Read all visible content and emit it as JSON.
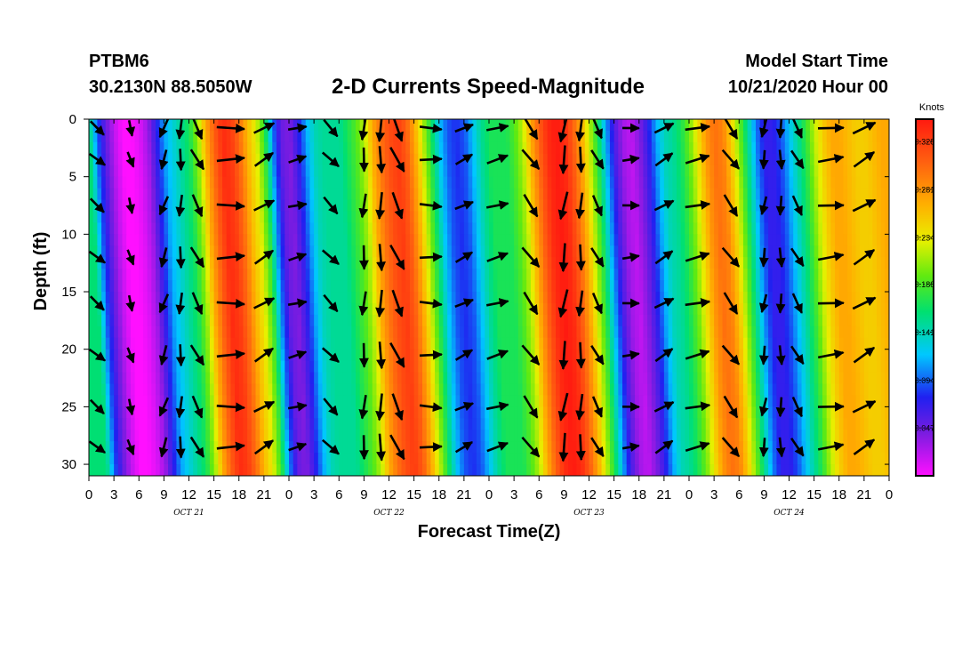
{
  "station": "PTBM6",
  "location": "30.2130N 88.5050W",
  "title": "2-D Currents Speed-Magnitude",
  "model_start_label": "Model Start Time",
  "model_start_value": "10/21/2020 Hour 00",
  "chart_data": {
    "type": "heatmap",
    "title": "2-D Currents Speed-Magnitude",
    "xlabel": "Forecast Time(Z)",
    "ylabel": "Depth (ft)",
    "xlim_hours": [
      0,
      96
    ],
    "ylim": [
      0,
      31
    ],
    "x_tick_labels": [
      "0",
      "3",
      "6",
      "9",
      "12",
      "15",
      "18",
      "21",
      "0",
      "3",
      "6",
      "9",
      "12",
      "15",
      "18",
      "21",
      "0",
      "3",
      "6",
      "9",
      "12",
      "15",
      "18",
      "21",
      "0",
      "3",
      "6",
      "9",
      "12",
      "15",
      "18",
      "21",
      "0"
    ],
    "day_labels": [
      "OCT 21",
      "OCT 22",
      "OCT 23",
      "OCT 24"
    ],
    "y_ticks": [
      0,
      5,
      10,
      15,
      20,
      25,
      30
    ],
    "colorbar_units": "Knots",
    "colorbar_ticks": [
      "0.328",
      "0.281",
      "0.234",
      "0.188",
      "0.141",
      "0.094",
      "0.047"
    ],
    "colorbar_range": [
      0.0,
      0.35
    ],
    "speed_profile": [
      [
        0,
        0.16
      ],
      [
        1,
        0.09
      ],
      [
        2,
        0.05
      ],
      [
        3,
        0.02
      ],
      [
        4,
        0.0
      ],
      [
        5,
        0.0
      ],
      [
        6,
        0.01
      ],
      [
        7,
        0.03
      ],
      [
        8,
        0.07
      ],
      [
        9,
        0.11
      ],
      [
        10,
        0.13
      ],
      [
        11,
        0.15
      ],
      [
        12,
        0.17
      ],
      [
        13,
        0.21
      ],
      [
        14,
        0.27
      ],
      [
        15,
        0.31
      ],
      [
        16,
        0.34
      ],
      [
        17,
        0.33
      ],
      [
        18,
        0.3
      ],
      [
        19,
        0.26
      ],
      [
        20,
        0.23
      ],
      [
        21,
        0.18
      ],
      [
        22,
        0.1
      ],
      [
        23,
        0.05
      ],
      [
        24,
        0.04
      ],
      [
        25,
        0.07
      ],
      [
        26,
        0.11
      ],
      [
        27,
        0.14
      ],
      [
        28,
        0.15
      ],
      [
        29,
        0.15
      ],
      [
        30,
        0.15
      ],
      [
        31,
        0.17
      ],
      [
        32,
        0.19
      ],
      [
        33,
        0.22
      ],
      [
        34,
        0.27
      ],
      [
        35,
        0.3
      ],
      [
        36,
        0.32
      ],
      [
        37,
        0.33
      ],
      [
        38,
        0.31
      ],
      [
        39,
        0.27
      ],
      [
        40,
        0.22
      ],
      [
        41,
        0.17
      ],
      [
        42,
        0.12
      ],
      [
        43,
        0.09
      ],
      [
        44,
        0.08
      ],
      [
        45,
        0.09
      ],
      [
        46,
        0.12
      ],
      [
        47,
        0.15
      ],
      [
        48,
        0.17
      ],
      [
        49,
        0.17
      ],
      [
        50,
        0.17
      ],
      [
        51,
        0.19
      ],
      [
        52,
        0.22
      ],
      [
        53,
        0.27
      ],
      [
        54,
        0.31
      ],
      [
        55,
        0.34
      ],
      [
        56,
        0.35
      ],
      [
        57,
        0.34
      ],
      [
        58,
        0.31
      ],
      [
        59,
        0.27
      ],
      [
        60,
        0.22
      ],
      [
        61,
        0.17
      ],
      [
        62,
        0.11
      ],
      [
        63,
        0.06
      ],
      [
        64,
        0.03
      ],
      [
        65,
        0.02
      ],
      [
        66,
        0.04
      ],
      [
        67,
        0.07
      ],
      [
        68,
        0.11
      ],
      [
        69,
        0.14
      ],
      [
        70,
        0.15
      ],
      [
        71,
        0.17
      ],
      [
        72,
        0.2
      ],
      [
        73,
        0.24
      ],
      [
        74,
        0.28
      ],
      [
        75,
        0.3
      ],
      [
        76,
        0.29
      ],
      [
        77,
        0.25
      ],
      [
        78,
        0.2
      ],
      [
        79,
        0.15
      ],
      [
        80,
        0.1
      ],
      [
        81,
        0.07
      ],
      [
        82,
        0.07
      ],
      [
        83,
        0.09
      ],
      [
        84,
        0.12
      ],
      [
        85,
        0.15
      ],
      [
        86,
        0.18
      ],
      [
        87,
        0.22
      ],
      [
        88,
        0.25
      ],
      [
        89,
        0.27
      ],
      [
        90,
        0.27
      ],
      [
        91,
        0.26
      ],
      [
        92,
        0.25
      ],
      [
        93,
        0.25
      ],
      [
        94,
        0.26
      ],
      [
        95,
        0.27
      ],
      [
        96,
        0.27
      ]
    ],
    "vector_columns_hours": [
      1,
      5,
      9,
      11,
      13,
      17,
      21,
      25,
      29,
      33,
      35,
      37,
      41,
      45,
      49,
      53,
      57,
      59,
      61,
      65,
      69,
      73,
      77,
      81,
      83,
      85,
      89,
      93
    ],
    "vector_depths_ft": [
      0,
      3.5,
      7.5,
      12,
      16,
      20.5,
      25,
      28.5
    ],
    "vector_direction_deg_by_hour": [
      [
        0,
        -40
      ],
      [
        3,
        -45
      ],
      [
        6,
        -90
      ],
      [
        9,
        -110
      ],
      [
        12,
        -85
      ],
      [
        15,
        -20
      ],
      [
        18,
        10
      ],
      [
        21,
        30
      ],
      [
        24,
        40
      ],
      [
        27,
        -40
      ],
      [
        30,
        -50
      ],
      [
        33,
        -95
      ],
      [
        36,
        -90
      ],
      [
        39,
        -20
      ],
      [
        42,
        5
      ],
      [
        45,
        25
      ],
      [
        48,
        45
      ],
      [
        51,
        -45
      ],
      [
        54,
        -60
      ],
      [
        57,
        -100
      ],
      [
        60,
        -90
      ],
      [
        63,
        -10
      ],
      [
        66,
        10
      ],
      [
        69,
        30
      ],
      [
        72,
        40
      ],
      [
        75,
        -45
      ],
      [
        78,
        -60
      ],
      [
        81,
        -100
      ],
      [
        84,
        -85
      ],
      [
        87,
        -15
      ],
      [
        90,
        15
      ],
      [
        93,
        30
      ],
      [
        96,
        40
      ]
    ]
  }
}
